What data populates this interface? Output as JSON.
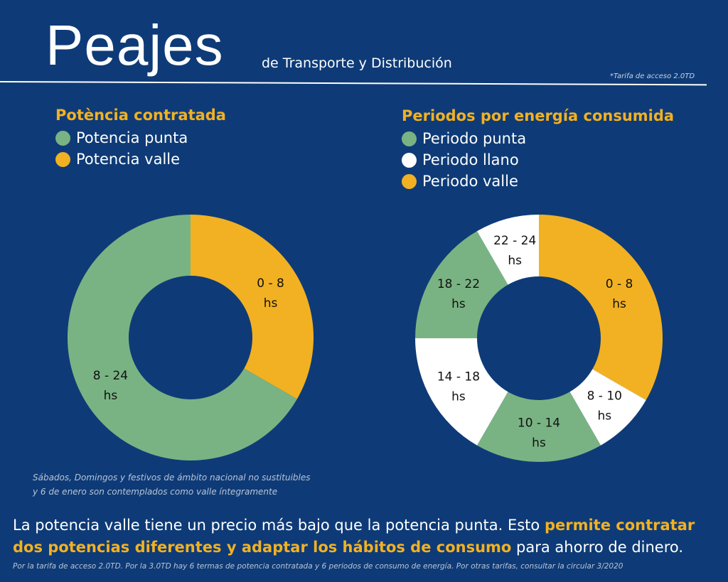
{
  "header": {
    "title": "Peajes",
    "subtitle": "de Transporte y Distribución",
    "note": "*Tarifa de acceso 2.0TD"
  },
  "colors": {
    "background": "#0e3b77",
    "orange": "#f2b122",
    "green": "#7ab383",
    "white": "#ffffff"
  },
  "chart_data": [
    {
      "type": "pie",
      "donut": true,
      "title": "Potència contratada",
      "start": "top",
      "direction": "clockwise",
      "legend": [
        {
          "name": "Potencia punta",
          "color": "#7ab383"
        },
        {
          "name": "Potencia valle",
          "color": "#f2b122"
        }
      ],
      "slices": [
        {
          "label": "0 - 8",
          "unit": "hs",
          "hours": 8,
          "color": "#f2b122"
        },
        {
          "label": "8 - 24",
          "unit": "hs",
          "hours": 16,
          "color": "#7ab383"
        }
      ]
    },
    {
      "type": "pie",
      "donut": true,
      "title": "Periodos por energía consumida",
      "start": "top",
      "direction": "clockwise",
      "legend": [
        {
          "name": "Periodo punta",
          "color": "#7ab383"
        },
        {
          "name": "Periodo llano",
          "color": "#ffffff"
        },
        {
          "name": "Periodo valle",
          "color": "#f2b122"
        }
      ],
      "slices": [
        {
          "label": "0 - 8",
          "unit": "hs",
          "hours": 8,
          "color": "#f2b122"
        },
        {
          "label": "8 - 10",
          "unit": "hs",
          "hours": 2,
          "color": "#ffffff"
        },
        {
          "label": "10 - 14",
          "unit": "hs",
          "hours": 4,
          "color": "#7ab383"
        },
        {
          "label": "14 - 18",
          "unit": "hs",
          "hours": 4,
          "color": "#ffffff"
        },
        {
          "label": "18 - 22",
          "unit": "hs",
          "hours": 4,
          "color": "#7ab383"
        },
        {
          "label": "22 - 24",
          "unit": "hs",
          "hours": 2,
          "color": "#ffffff"
        }
      ]
    }
  ],
  "footnote1": [
    "Sábados, Domingos y festivos de ámbito nacional no sustituibles",
    "y 6 de enero son contemplados como valle íntegramente"
  ],
  "main_text": {
    "part1": "La potencia valle tiene un precio más bajo que la potencia punta. Esto ",
    "bold": "permite contratar dos potencias diferentes y adaptar los hábitos de consumo",
    "part2": " para ahorro de dinero."
  },
  "footnote2": "Por la tarifa de acceso 2.0TD. Por la 3.0TD hay 6 termas de potencia contratada y 6 periodos de consumo de energía. Por otras tarifas, consultar la circular 3/2020"
}
